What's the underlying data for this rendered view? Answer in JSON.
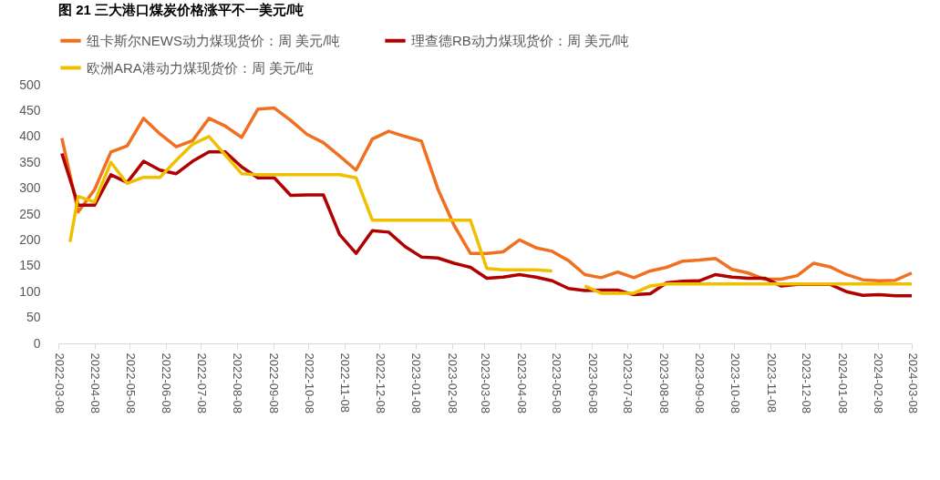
{
  "chart_data": {
    "type": "line",
    "title": "图 21 三大港口煤炭价格涨平不一美元/吨",
    "x": [
      "2022-03-11",
      "2022-03-25",
      "2022-04-08",
      "2022-04-22",
      "2022-05-06",
      "2022-05-20",
      "2022-06-03",
      "2022-06-17",
      "2022-07-01",
      "2022-07-15",
      "2022-07-29",
      "2022-08-12",
      "2022-08-26",
      "2022-09-09",
      "2022-09-23",
      "2022-10-07",
      "2022-10-21",
      "2022-11-04",
      "2022-11-18",
      "2022-12-02",
      "2022-12-16",
      "2022-12-30",
      "2023-01-13",
      "2023-01-27",
      "2023-02-10",
      "2023-02-24",
      "2023-03-10",
      "2023-03-24",
      "2023-04-07",
      "2023-04-21",
      "2023-05-05",
      "2023-05-19",
      "2023-06-02",
      "2023-06-16",
      "2023-06-30",
      "2023-07-14",
      "2023-07-28",
      "2023-08-11",
      "2023-08-25",
      "2023-09-08",
      "2023-09-22",
      "2023-10-06",
      "2023-10-20",
      "2023-11-03",
      "2023-11-17",
      "2023-12-01",
      "2023-12-15",
      "2023-12-29",
      "2024-01-12",
      "2024-01-26",
      "2024-02-09",
      "2024-02-23",
      "2024-03-08"
    ],
    "series": [
      {
        "name": "纽卡斯尔NEWS动力煤现货价：周 美元/吨",
        "color": "#f07020",
        "values": [
          397,
          254,
          297,
          370,
          382,
          435,
          405,
          380,
          392,
          435,
          420,
          398,
          453,
          455,
          431,
          404,
          388,
          362,
          335,
          395,
          410,
          400,
          391,
          299,
          228,
          174,
          174,
          177,
          200,
          185,
          178,
          160,
          133,
          127,
          138,
          127,
          140,
          147,
          159,
          161,
          164,
          143,
          136,
          124,
          124,
          131,
          155,
          148,
          133,
          123,
          121,
          122,
          136
        ]
      },
      {
        "name": "理查德RB动力煤现货价：周 美元/吨",
        "color": "#b00000",
        "values": [
          367,
          267,
          267,
          326,
          311,
          352,
          335,
          328,
          352,
          370,
          370,
          341,
          320,
          320,
          286,
          287,
          287,
          210,
          174,
          218,
          215,
          187,
          167,
          165,
          155,
          147,
          126,
          128,
          133,
          128,
          121,
          106,
          102,
          103,
          103,
          94,
          96,
          117,
          120,
          121,
          133,
          128,
          126,
          126,
          111,
          114,
          114,
          114,
          100,
          93,
          94,
          92,
          92
        ]
      },
      {
        "name": "欧洲ARA港动力煤现货价：周 美元/吨",
        "color": "#f0c000",
        "x": [
          "2022-03-18",
          "2022-03-25",
          "2022-04-08",
          "2022-04-22",
          "2022-05-06",
          "2022-05-20",
          "2022-06-03",
          "2022-06-17",
          "2022-07-01",
          "2022-07-15",
          "2022-07-29",
          "2022-08-12",
          "2022-08-26",
          "2022-09-09",
          "2022-09-23",
          "2022-10-07",
          "2022-10-21",
          "2022-11-04",
          "2022-11-18",
          "2022-12-02",
          "2022-12-16",
          "2022-12-30",
          "2023-01-13",
          "2023-01-27",
          "2023-02-10",
          "2023-02-24",
          "2023-03-10",
          "2023-03-24",
          "2023-04-07",
          "2023-04-21",
          "2023-05-05",
          "2023-05-19",
          "2023-06-02",
          "2023-06-16",
          "2023-06-30",
          "2023-07-14",
          "2023-07-28",
          "2023-08-11",
          "2023-08-25",
          "2023-09-08",
          "2023-09-22",
          "2023-10-06",
          "2023-10-20",
          "2023-11-03",
          "2023-11-17",
          "2023-12-01",
          "2023-12-15",
          "2023-12-29",
          "2024-01-12",
          "2024-01-26",
          "2024-02-09",
          "2024-02-23",
          "2024-03-08"
        ],
        "values": [
          196,
          284,
          273,
          350,
          309,
          321,
          321,
          354,
          385,
          400,
          364,
          328,
          326,
          326,
          326,
          326,
          326,
          326,
          320,
          238,
          238,
          238,
          238,
          238,
          238,
          238,
          145,
          142,
          142,
          142,
          140,
          null,
          111,
          97,
          97,
          97,
          111,
          115,
          115,
          115,
          115,
          115,
          115,
          115,
          115,
          115,
          115,
          115,
          115,
          115,
          115,
          115,
          115
        ]
      }
    ],
    "xlim": [
      "2022-03-08",
      "2024-03-08"
    ],
    "xticks": [
      "2022-03-08",
      "2022-04-08",
      "2022-05-08",
      "2022-06-08",
      "2022-07-08",
      "2022-08-08",
      "2022-09-08",
      "2022-10-08",
      "2022-11-08",
      "2022-12-08",
      "2023-01-08",
      "2023-02-08",
      "2023-03-08",
      "2023-04-08",
      "2023-05-08",
      "2023-06-08",
      "2023-07-08",
      "2023-08-08",
      "2023-09-08",
      "2023-10-08",
      "2023-11-08",
      "2023-12-08",
      "2024-01-08",
      "2024-02-08",
      "2024-03-08"
    ],
    "ylim": [
      0,
      500
    ],
    "yticks": [
      0,
      50,
      100,
      150,
      200,
      250,
      300,
      350,
      400,
      450,
      500
    ],
    "grid": false,
    "legend": "top",
    "line_style": "solid",
    "marker": "none"
  }
}
